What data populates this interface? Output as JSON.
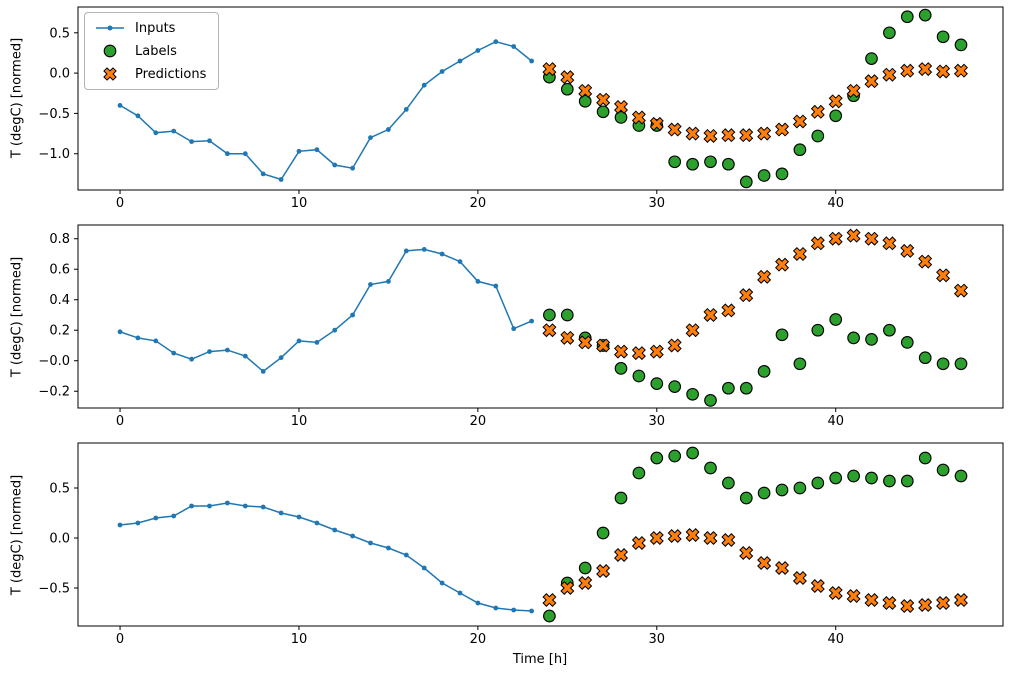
{
  "figure": {
    "background": "#ffffff",
    "xlabel": "Time [h]",
    "ylabel": "T (degC) [normed]",
    "colors": {
      "inputs": "#1f77b4",
      "labels": "#2ca02c",
      "predictions": "#ff7f0e",
      "marker_edge": "#000000",
      "axis": "#000000",
      "legend_border": "#b3b3b3"
    },
    "legend": {
      "position": "upper-left",
      "entries": [
        {
          "label": "Inputs",
          "marker": "line-dot",
          "color": "#1f77b4"
        },
        {
          "label": "Labels",
          "marker": "circle",
          "color": "#2ca02c"
        },
        {
          "label": "Predictions",
          "marker": "x-cross",
          "color": "#ff7f0e"
        }
      ]
    }
  },
  "chart_data": [
    {
      "type": "line",
      "title": "",
      "xlabel": "",
      "ylabel": "T (degC) [normed]",
      "xlim": [
        -2.35,
        49.35
      ],
      "ylim": [
        -1.45,
        0.82
      ],
      "grid": false,
      "xticks": [
        0,
        10,
        20,
        30,
        40
      ],
      "xtick_labels": [
        "0",
        "10",
        "20",
        "30",
        "40"
      ],
      "yticks": [
        0.5,
        0.0,
        -0.5,
        -1.0
      ],
      "ytick_labels": [
        "0.5",
        "0.0",
        "−0.5",
        "−1.0"
      ],
      "series": [
        {
          "name": "Inputs",
          "plot": "line",
          "marker": "dot",
          "color": "#1f77b4",
          "x": [
            0,
            1,
            2,
            3,
            4,
            5,
            6,
            7,
            8,
            9,
            10,
            11,
            12,
            13,
            14,
            15,
            16,
            17,
            18,
            19,
            20,
            21,
            22,
            23
          ],
          "y": [
            -0.4,
            -0.53,
            -0.74,
            -0.72,
            -0.85,
            -0.84,
            -1.0,
            -1.0,
            -1.25,
            -1.32,
            -0.97,
            -0.95,
            -1.14,
            -1.18,
            -0.8,
            -0.7,
            -0.45,
            -0.15,
            0.02,
            0.15,
            0.28,
            0.39,
            0.33,
            0.15
          ]
        },
        {
          "name": "Labels",
          "plot": "scatter",
          "marker": "circle",
          "color": "#2ca02c",
          "x": [
            24,
            25,
            26,
            27,
            28,
            29,
            30,
            31,
            32,
            33,
            34,
            35,
            36,
            37,
            38,
            39,
            40,
            41,
            42,
            43,
            44,
            45,
            46,
            47
          ],
          "y": [
            -0.05,
            -0.2,
            -0.35,
            -0.48,
            -0.55,
            -0.65,
            -0.65,
            -1.1,
            -1.13,
            -1.1,
            -1.13,
            -1.35,
            -1.27,
            -1.25,
            -0.95,
            -0.78,
            -0.53,
            -0.28,
            0.18,
            0.5,
            0.7,
            0.72,
            0.45,
            0.35
          ]
        },
        {
          "name": "Predictions",
          "plot": "scatter",
          "marker": "x-cross",
          "color": "#ff7f0e",
          "x": [
            24,
            25,
            26,
            27,
            28,
            29,
            30,
            31,
            32,
            33,
            34,
            35,
            36,
            37,
            38,
            39,
            40,
            41,
            42,
            43,
            44,
            45,
            46,
            47
          ],
          "y": [
            0.05,
            -0.05,
            -0.22,
            -0.33,
            -0.42,
            -0.55,
            -0.63,
            -0.7,
            -0.75,
            -0.78,
            -0.77,
            -0.77,
            -0.75,
            -0.7,
            -0.6,
            -0.48,
            -0.35,
            -0.22,
            -0.1,
            -0.02,
            0.03,
            0.05,
            0.02,
            0.03
          ]
        }
      ]
    },
    {
      "type": "line",
      "title": "",
      "xlabel": "",
      "ylabel": "T (degC) [normed]",
      "xlim": [
        -2.35,
        49.35
      ],
      "ylim": [
        -0.31,
        0.89
      ],
      "grid": false,
      "xticks": [
        0,
        10,
        20,
        30,
        40
      ],
      "xtick_labels": [
        "0",
        "10",
        "20",
        "30",
        "40"
      ],
      "yticks": [
        0.8,
        0.6,
        0.4,
        0.2,
        0.0,
        -0.2
      ],
      "ytick_labels": [
        "0.8",
        "0.6",
        "0.4",
        "0.2",
        "−0.0",
        "−0.2"
      ],
      "series": [
        {
          "name": "Inputs",
          "plot": "line",
          "marker": "dot",
          "color": "#1f77b4",
          "x": [
            0,
            1,
            2,
            3,
            4,
            5,
            6,
            7,
            8,
            9,
            10,
            11,
            12,
            13,
            14,
            15,
            16,
            17,
            18,
            19,
            20,
            21,
            22,
            23
          ],
          "y": [
            0.19,
            0.15,
            0.13,
            0.05,
            0.01,
            0.06,
            0.07,
            0.03,
            -0.07,
            0.02,
            0.13,
            0.12,
            0.2,
            0.3,
            0.5,
            0.52,
            0.72,
            0.73,
            0.7,
            0.65,
            0.52,
            0.49,
            0.21,
            0.26
          ]
        },
        {
          "name": "Labels",
          "plot": "scatter",
          "marker": "circle",
          "color": "#2ca02c",
          "x": [
            24,
            25,
            26,
            27,
            28,
            29,
            30,
            31,
            32,
            33,
            34,
            35,
            36,
            37,
            38,
            39,
            40,
            41,
            42,
            43,
            44,
            45,
            46,
            47
          ],
          "y": [
            0.3,
            0.3,
            0.15,
            0.1,
            -0.05,
            -0.1,
            -0.15,
            -0.17,
            -0.22,
            -0.26,
            -0.18,
            -0.18,
            -0.07,
            0.17,
            -0.02,
            0.2,
            0.27,
            0.15,
            0.14,
            0.2,
            0.12,
            0.02,
            -0.02,
            -0.02
          ]
        },
        {
          "name": "Predictions",
          "plot": "scatter",
          "marker": "x-cross",
          "color": "#ff7f0e",
          "x": [
            24,
            25,
            26,
            27,
            28,
            29,
            30,
            31,
            32,
            33,
            34,
            35,
            36,
            37,
            38,
            39,
            40,
            41,
            42,
            43,
            44,
            45,
            46,
            47
          ],
          "y": [
            0.2,
            0.15,
            0.12,
            0.1,
            0.06,
            0.05,
            0.06,
            0.1,
            0.2,
            0.3,
            0.33,
            0.43,
            0.55,
            0.63,
            0.7,
            0.77,
            0.8,
            0.82,
            0.8,
            0.77,
            0.72,
            0.65,
            0.56,
            0.46
          ]
        }
      ]
    },
    {
      "type": "line",
      "title": "",
      "xlabel": "Time [h]",
      "ylabel": "T (degC) [normed]",
      "xlim": [
        -2.35,
        49.35
      ],
      "ylim": [
        -0.88,
        0.95
      ],
      "grid": false,
      "xticks": [
        0,
        10,
        20,
        30,
        40
      ],
      "xtick_labels": [
        "0",
        "10",
        "20",
        "30",
        "40"
      ],
      "yticks": [
        0.5,
        0.0,
        -0.5
      ],
      "ytick_labels": [
        "0.5",
        "0.0",
        "−0.5"
      ],
      "series": [
        {
          "name": "Inputs",
          "plot": "line",
          "marker": "dot",
          "color": "#1f77b4",
          "x": [
            0,
            1,
            2,
            3,
            4,
            5,
            6,
            7,
            8,
            9,
            10,
            11,
            12,
            13,
            14,
            15,
            16,
            17,
            18,
            19,
            20,
            21,
            22,
            23
          ],
          "y": [
            0.13,
            0.15,
            0.2,
            0.22,
            0.32,
            0.32,
            0.35,
            0.32,
            0.31,
            0.25,
            0.21,
            0.15,
            0.08,
            0.02,
            -0.05,
            -0.1,
            -0.17,
            -0.3,
            -0.45,
            -0.55,
            -0.65,
            -0.7,
            -0.72,
            -0.73
          ]
        },
        {
          "name": "Labels",
          "plot": "scatter",
          "marker": "circle",
          "color": "#2ca02c",
          "x": [
            24,
            25,
            26,
            27,
            28,
            29,
            30,
            31,
            32,
            33,
            34,
            35,
            36,
            37,
            38,
            39,
            40,
            41,
            42,
            43,
            44,
            45,
            46,
            47
          ],
          "y": [
            -0.78,
            -0.45,
            -0.3,
            0.05,
            0.4,
            0.65,
            0.8,
            0.82,
            0.85,
            0.7,
            0.55,
            0.4,
            0.45,
            0.48,
            0.5,
            0.55,
            0.6,
            0.62,
            0.6,
            0.57,
            0.57,
            0.8,
            0.68,
            0.62
          ]
        },
        {
          "name": "Predictions",
          "plot": "scatter",
          "marker": "x-cross",
          "color": "#ff7f0e",
          "x": [
            24,
            25,
            26,
            27,
            28,
            29,
            30,
            31,
            32,
            33,
            34,
            35,
            36,
            37,
            38,
            39,
            40,
            41,
            42,
            43,
            44,
            45,
            46,
            47
          ],
          "y": [
            -0.62,
            -0.5,
            -0.45,
            -0.33,
            -0.17,
            -0.05,
            0.0,
            0.02,
            0.03,
            0.0,
            -0.02,
            -0.15,
            -0.25,
            -0.3,
            -0.4,
            -0.48,
            -0.55,
            -0.58,
            -0.62,
            -0.65,
            -0.68,
            -0.67,
            -0.65,
            -0.62
          ]
        }
      ]
    }
  ]
}
